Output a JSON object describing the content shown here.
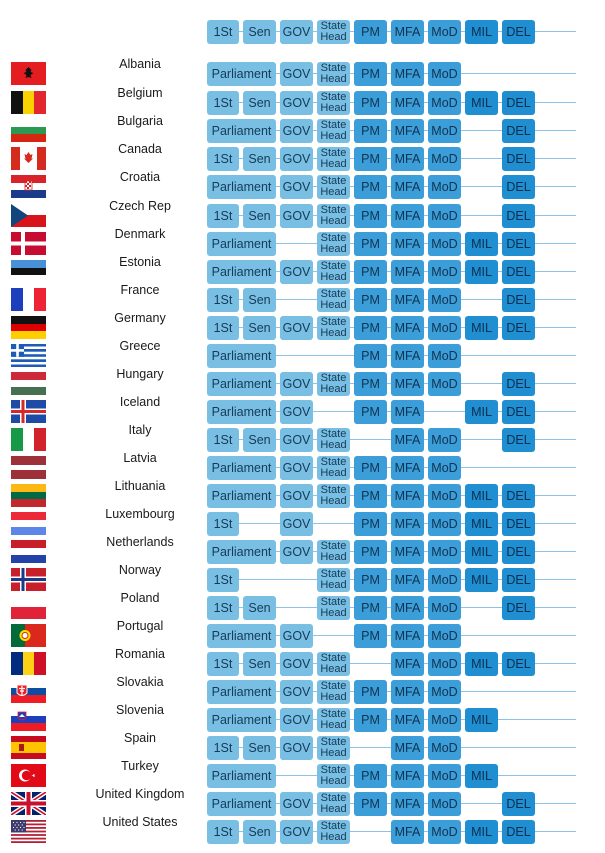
{
  "columns": {
    "1st": "1St",
    "sen": "Sen",
    "gov": "GOV",
    "state_head": "State Head",
    "pm": "PM",
    "mfa": "MFA",
    "mod": "MoD",
    "mil": "MIL",
    "del": "DEL",
    "parliament": "Parliament"
  },
  "header": [
    "1st",
    "sen",
    "gov",
    "state_head",
    "pm",
    "mfa",
    "mod",
    "mil",
    "del"
  ],
  "countries": [
    {
      "name": "Albania",
      "flag": "albania-flag",
      "cells": [
        "parliament",
        "gov",
        "state_head",
        "pm",
        "mfa",
        "mod"
      ]
    },
    {
      "name": "Belgium",
      "flag": "belgium-flag",
      "cells": [
        "1st",
        "sen",
        "gov",
        "state_head",
        "pm",
        "mfa",
        "mod",
        "mil",
        "del"
      ]
    },
    {
      "name": "Bulgaria",
      "flag": "bulgaria-flag",
      "cells": [
        "parliament",
        "gov",
        "state_head",
        "pm",
        "mfa",
        "mod",
        "del"
      ]
    },
    {
      "name": "Canada",
      "flag": "canada-flag",
      "cells": [
        "1st",
        "sen",
        "gov",
        "state_head",
        "pm",
        "mfa",
        "mod",
        "del"
      ]
    },
    {
      "name": "Croatia",
      "flag": "croatia-flag",
      "cells": [
        "parliament",
        "gov",
        "state_head",
        "pm",
        "mfa",
        "mod",
        "del"
      ]
    },
    {
      "name": "Czech Rep",
      "flag": "czech-flag",
      "cells": [
        "1st",
        "sen",
        "gov",
        "state_head",
        "pm",
        "mfa",
        "mod",
        "del"
      ]
    },
    {
      "name": "Denmark",
      "flag": "denmark-flag",
      "cells": [
        "parliament",
        "state_head",
        "pm",
        "mfa",
        "mod",
        "mil",
        "del"
      ]
    },
    {
      "name": "Estonia",
      "flag": "estonia-flag",
      "cells": [
        "parliament",
        "gov",
        "state_head",
        "pm",
        "mfa",
        "mod",
        "mil",
        "del"
      ]
    },
    {
      "name": "France",
      "flag": "france-flag",
      "cells": [
        "1st",
        "sen",
        "state_head",
        "pm",
        "mfa",
        "mod",
        "del"
      ]
    },
    {
      "name": "Germany",
      "flag": "germany-flag",
      "cells": [
        "1st",
        "sen",
        "gov",
        "state_head",
        "pm",
        "mfa",
        "mod",
        "mil",
        "del"
      ]
    },
    {
      "name": "Greece",
      "flag": "greece-flag",
      "cells": [
        "parliament",
        "pm",
        "mfa",
        "mod"
      ]
    },
    {
      "name": "Hungary",
      "flag": "hungary-flag",
      "cells": [
        "parliament",
        "gov",
        "state_head",
        "pm",
        "mfa",
        "mod",
        "del"
      ]
    },
    {
      "name": "Iceland",
      "flag": "iceland-flag",
      "cells": [
        "parliament",
        "gov",
        "pm",
        "mfa",
        "mil",
        "del"
      ]
    },
    {
      "name": "Italy",
      "flag": "italy-flag",
      "cells": [
        "1st",
        "sen",
        "gov",
        "state_head",
        "mfa",
        "mod",
        "del"
      ]
    },
    {
      "name": "Latvia",
      "flag": "latvia-flag",
      "cells": [
        "parliament",
        "gov",
        "state_head",
        "pm",
        "mfa",
        "mod"
      ]
    },
    {
      "name": "Lithuania",
      "flag": "lithuania-flag",
      "cells": [
        "parliament",
        "gov",
        "state_head",
        "pm",
        "mfa",
        "mod",
        "mil",
        "del"
      ]
    },
    {
      "name": "Luxembourg",
      "flag": "luxembourg-flag",
      "cells": [
        "1st",
        "gov",
        "pm",
        "mfa",
        "mod",
        "mil",
        "del"
      ]
    },
    {
      "name": "Netherlands",
      "flag": "netherlands-flag",
      "cells": [
        "parliament",
        "gov",
        "state_head",
        "pm",
        "mfa",
        "mod",
        "mil",
        "del"
      ]
    },
    {
      "name": "Norway",
      "flag": "norway-flag",
      "cells": [
        "1st",
        "state_head",
        "pm",
        "mfa",
        "mod",
        "mil",
        "del"
      ]
    },
    {
      "name": "Poland",
      "flag": "poland-flag",
      "cells": [
        "1st",
        "sen",
        "state_head",
        "pm",
        "mfa",
        "mod",
        "del"
      ]
    },
    {
      "name": "Portugal",
      "flag": "portugal-flag",
      "cells": [
        "parliament",
        "gov",
        "pm",
        "mfa",
        "mod"
      ]
    },
    {
      "name": "Romania",
      "flag": "romania-flag",
      "cells": [
        "1st",
        "sen",
        "gov",
        "state_head",
        "mfa",
        "mod",
        "mil",
        "del"
      ]
    },
    {
      "name": "Slovakia",
      "flag": "slovakia-flag",
      "cells": [
        "parliament",
        "gov",
        "state_head",
        "pm",
        "mfa",
        "mod"
      ]
    },
    {
      "name": "Slovenia",
      "flag": "slovenia-flag",
      "cells": [
        "parliament",
        "gov",
        "state_head",
        "pm",
        "mfa",
        "mod",
        "mil"
      ]
    },
    {
      "name": "Spain",
      "flag": "spain-flag",
      "cells": [
        "1st",
        "sen",
        "gov",
        "state_head",
        "mfa",
        "mod"
      ]
    },
    {
      "name": "Turkey",
      "flag": "turkey-flag",
      "cells": [
        "parliament",
        "state_head",
        "pm",
        "mfa",
        "mod",
        "mil"
      ]
    },
    {
      "name": "United Kingdom",
      "flag": "uk-flag",
      "cells": [
        "parliament",
        "gov",
        "state_head",
        "pm",
        "mfa",
        "mod",
        "del"
      ]
    },
    {
      "name": "United States",
      "flag": "us-flag",
      "cells": [
        "1st",
        "sen",
        "gov",
        "state_head",
        "mfa",
        "mod",
        "mil",
        "del"
      ]
    }
  ],
  "colors": {
    "light": "#79bfe4",
    "mid": "#3c9ed8",
    "dark": "#1f8fd2",
    "line": "#8fc3e6"
  }
}
